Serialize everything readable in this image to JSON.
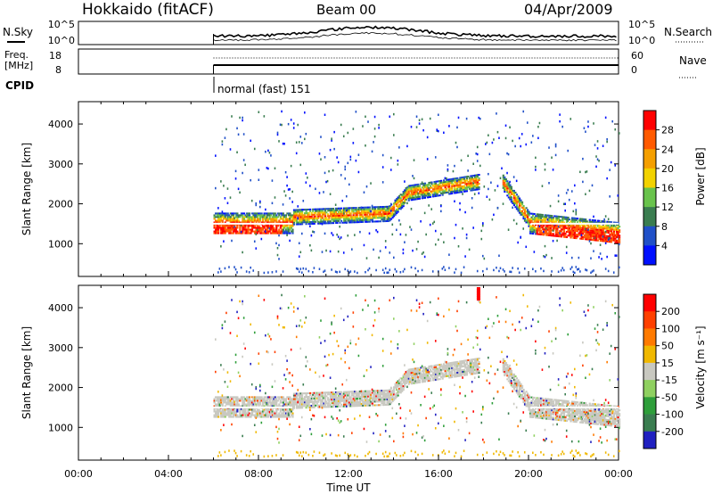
{
  "header": {
    "station": "Hokkaido (fitACF)",
    "beam": "Beam 00",
    "date": "04/Apr/2009"
  },
  "top_panels": {
    "nsky_label_1": "N.Sky",
    "nsky_label_2": "",
    "noise_left_ticks": [
      "10^5",
      "10^0"
    ],
    "noise_right_ticks": [
      "10^5",
      "10^0"
    ],
    "nsearch_label": "N.Search",
    "freq_label_1": "Freq.",
    "freq_label_2": "[MHz]",
    "freq_left_ticks": [
      "18",
      "8"
    ],
    "freq_right_ticks": [
      "60",
      "0"
    ],
    "nave_label": "Nave",
    "cpid_label": "CPID",
    "cpid_value": "normal (fast) 151"
  },
  "chart_data": [
    {
      "type": "heatmap",
      "title": "",
      "ylabel": "Slant Range [km]",
      "y_ticks": [
        1000,
        2000,
        3000,
        4000
      ],
      "ylim": [
        180,
        4560
      ],
      "xlabel": "Time UT",
      "x_ticks": [
        "00:00",
        "04:00",
        "08:00",
        "12:00",
        "16:00",
        "20:00",
        "00:00"
      ],
      "xlim_hours": [
        0,
        24
      ],
      "colorbar": {
        "label": "Power [dB]",
        "ticks": [
          "4",
          "8",
          "12",
          "16",
          "20",
          "24",
          "28"
        ],
        "colors": [
          "#0010ff",
          "#2050c8",
          "#3a7d50",
          "#69c34c",
          "#f2d200",
          "#f59f00",
          "#ff5a00",
          "#ff0000"
        ]
      }
    },
    {
      "type": "heatmap",
      "title": "",
      "ylabel": "Slant Range [km]",
      "y_ticks": [
        1000,
        2000,
        3000,
        4000
      ],
      "ylim": [
        180,
        4560
      ],
      "xlabel": "Time UT",
      "x_ticks": [
        "00:00",
        "04:00",
        "08:00",
        "12:00",
        "16:00",
        "20:00",
        "00:00"
      ],
      "xlim_hours": [
        0,
        24
      ],
      "colorbar": {
        "label": "Velocity [m s⁻¹]",
        "ticks": [
          "200",
          "100",
          "50",
          "15",
          "-15",
          "-50",
          "-100",
          "-200"
        ],
        "colors": [
          "#2020c0",
          "#3a7d50",
          "#2e9e3a",
          "#8fd060",
          "#c8c8c0",
          "#f0b800",
          "#ff7a00",
          "#ff4000",
          "#ff0000"
        ]
      }
    }
  ],
  "xaxis": {
    "title": "Time UT",
    "ticks": [
      "00:00",
      "04:00",
      "08:00",
      "12:00",
      "16:00",
      "20:00",
      "00:00"
    ]
  }
}
